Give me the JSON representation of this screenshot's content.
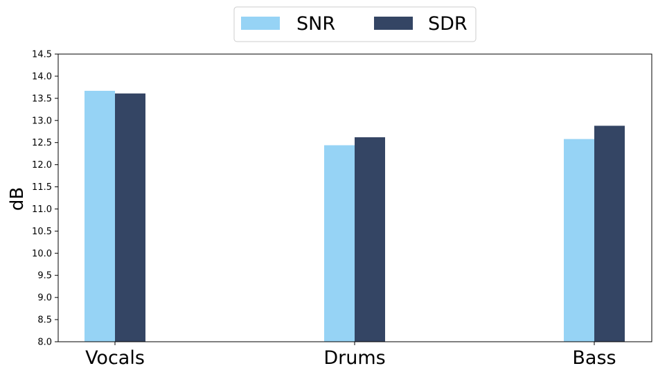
{
  "chart_data": {
    "type": "bar",
    "categories": [
      "Vocals",
      "Drums",
      "Bass"
    ],
    "series": [
      {
        "name": "SNR",
        "values": [
          13.67,
          12.44,
          12.58
        ],
        "color": "#96d3f5"
      },
      {
        "name": "SDR",
        "values": [
          13.61,
          12.62,
          12.88
        ],
        "color": "#344564"
      }
    ],
    "title": "",
    "xlabel": "",
    "ylabel": "dB",
    "ylim": [
      8.0,
      14.5
    ],
    "yticks": [
      "8.0",
      "8.5",
      "9.0",
      "9.5",
      "10.0",
      "10.5",
      "11.0",
      "11.5",
      "12.0",
      "12.5",
      "13.0",
      "13.5",
      "14.0",
      "14.5"
    ],
    "grid": false,
    "legend_position": "top-center"
  }
}
